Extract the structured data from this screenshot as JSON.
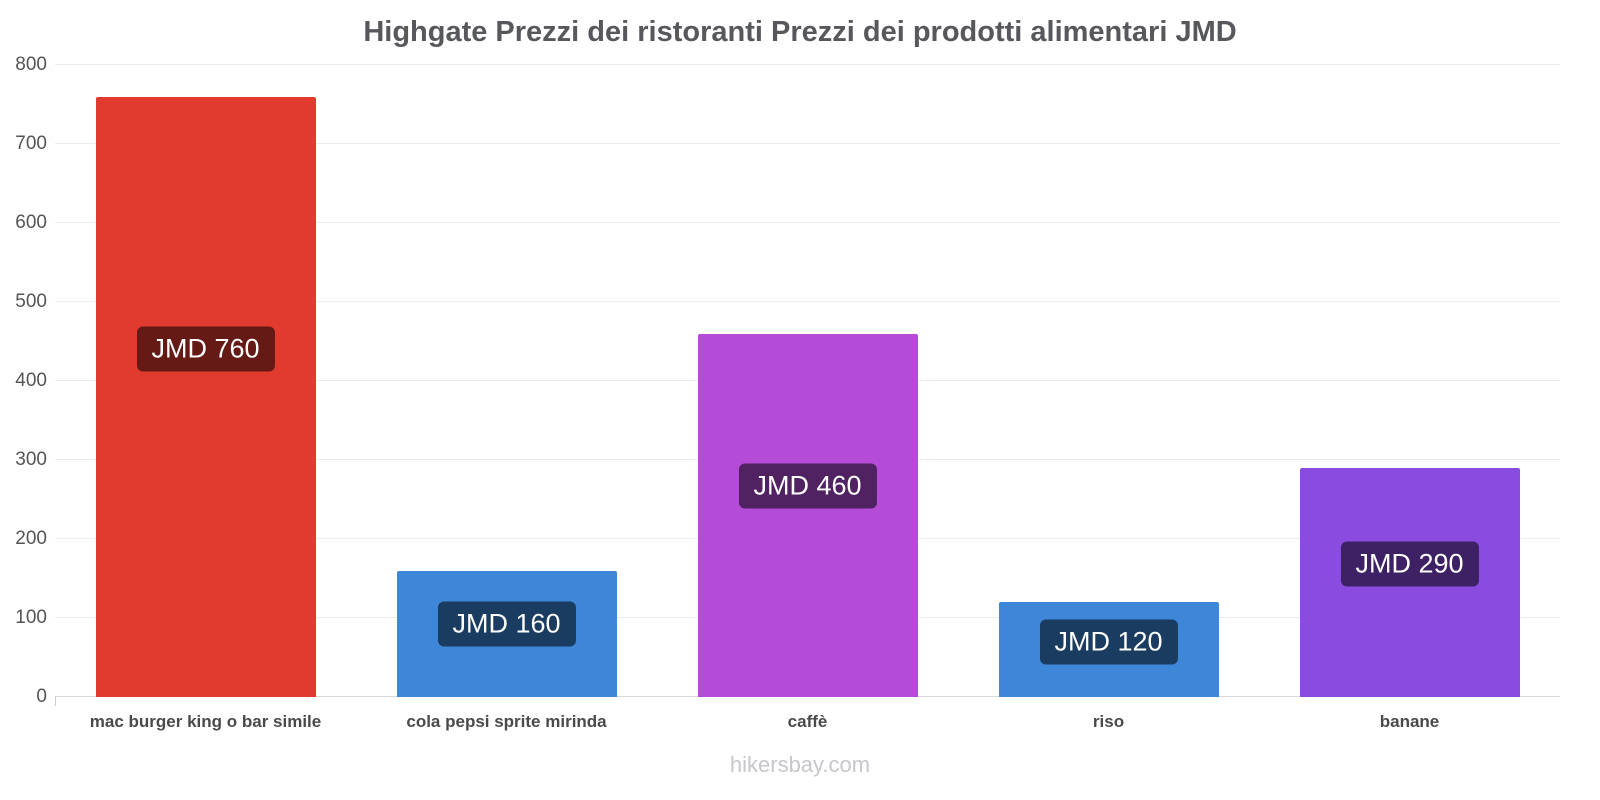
{
  "page": {
    "footer": "hikersbay.com"
  },
  "chart_data": {
    "type": "bar",
    "title": "Highgate Prezzi dei ristoranti Prezzi dei prodotti alimentari JMD",
    "categories": [
      "mac burger king o bar simile",
      "cola pepsi sprite mirinda",
      "caffè",
      "riso",
      "banane"
    ],
    "values": [
      760,
      160,
      460,
      120,
      290
    ],
    "value_labels": [
      "JMD 760",
      "JMD 160",
      "JMD 460",
      "JMD 120",
      "JMD 290"
    ],
    "bar_colors": [
      "#e13b30",
      "#3d86d8",
      "#b44cd8",
      "#3d86d8",
      "#8a4be0"
    ],
    "value_label_bg": "rgba(0,0,0,0.55)",
    "xlabel": "",
    "ylabel": "",
    "ylim": [
      0,
      800
    ],
    "ytick_step": 100,
    "grid": true,
    "legend": "none"
  }
}
